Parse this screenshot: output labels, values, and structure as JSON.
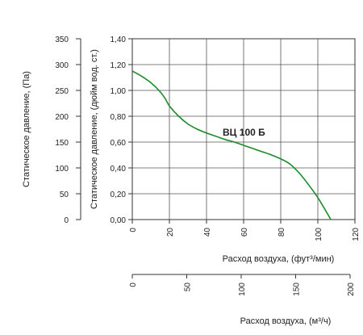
{
  "chart_data": {
    "type": "line",
    "title": "",
    "series": [
      {
        "name": "ВЦ 100 Б",
        "color": "#1a8a2a",
        "x_cfm": [
          0,
          5,
          10,
          15,
          18,
          20,
          25,
          30,
          35,
          40,
          45,
          50,
          55,
          60,
          65,
          70,
          75,
          80,
          85,
          90,
          95,
          100,
          105,
          107
        ],
        "y_inwg": [
          1.15,
          1.11,
          1.06,
          0.99,
          0.93,
          0.88,
          0.8,
          0.74,
          0.7,
          0.67,
          0.645,
          0.62,
          0.6,
          0.575,
          0.55,
          0.525,
          0.5,
          0.47,
          0.43,
          0.36,
          0.27,
          0.17,
          0.05,
          0.0
        ]
      }
    ],
    "y_left": {
      "label": "Статическое давление, (Па)",
      "ticks": [
        "350",
        "300",
        "250",
        "200",
        "150",
        "100",
        "50",
        "0"
      ],
      "range": [
        0,
        350
      ]
    },
    "y_right": {
      "label": "Статическое давление, (дюйм вод. ст.)",
      "ticks": [
        "1,40",
        "1,20",
        "1,00",
        "0,80",
        "0,60",
        "0,40",
        "0,20",
        "0,00"
      ],
      "range": [
        0,
        1.4
      ]
    },
    "x_top": {
      "label": "Расход воздуха, (фут³/мин)",
      "ticks": [
        "0",
        "20",
        "40",
        "60",
        "80",
        "100",
        "120"
      ],
      "range": [
        0,
        120
      ]
    },
    "x_bottom": {
      "label": "Расход воздуха, (м³/ч)",
      "ticks": [
        "0",
        "50",
        "100",
        "150",
        "200"
      ],
      "range": [
        0,
        200
      ]
    },
    "grid": true
  }
}
